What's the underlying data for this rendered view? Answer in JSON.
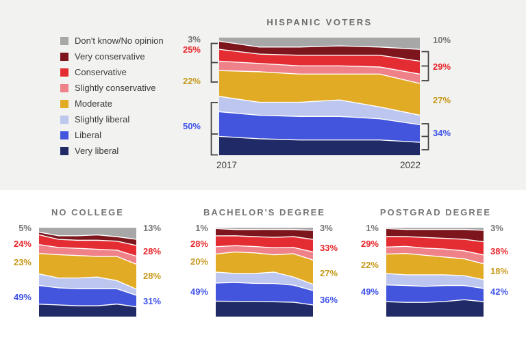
{
  "panel_colors": {
    "top_background": "#f2f2f0",
    "bottom_background": "#ffffff"
  },
  "colors": {
    "dont_know": "#a7a7a7",
    "very_conservative": "#7d161c",
    "conservative": "#e42d33",
    "slightly_conservative": "#ef8189",
    "moderate": "#e2ab26",
    "slightly_liberal": "#bcc6ee",
    "liberal": "#4355dc",
    "very_liberal": "#202a66",
    "label_gray": "#757575",
    "label_red": "#e8272c",
    "label_gold": "#c6991c",
    "label_blue": "#3f53e8",
    "bracket": "#3f3f3f"
  },
  "legend": {
    "items": [
      {
        "label": "Don't know/No opinion",
        "color_key": "dont_know"
      },
      {
        "label": "Very conservative",
        "color_key": "very_conservative"
      },
      {
        "label": "Conservative",
        "color_key": "conservative"
      },
      {
        "label": "Slightly conservative",
        "color_key": "slightly_conservative"
      },
      {
        "label": "Moderate",
        "color_key": "moderate"
      },
      {
        "label": "Slightly liberal",
        "color_key": "slightly_liberal"
      },
      {
        "label": "Liberal",
        "color_key": "liberal"
      },
      {
        "label": "Very liberal",
        "color_key": "very_liberal"
      }
    ]
  },
  "charts": {
    "hispanic": {
      "title": "HISPANIC VOTERS",
      "x_start": "2017",
      "x_end": "2022",
      "left": [
        "3%",
        "25%",
        "22%",
        "50%"
      ],
      "right": [
        "10%",
        "29%",
        "27%",
        "34%"
      ]
    },
    "no_college": {
      "title": "NO COLLEGE",
      "left": [
        "5%",
        "24%",
        "23%",
        "49%"
      ],
      "right": [
        "13%",
        "28%",
        "28%",
        "31%"
      ]
    },
    "bachelors": {
      "title": "BACHELOR'S DEGREE",
      "left": [
        "1%",
        "28%",
        "20%",
        "49%"
      ],
      "right": [
        "3%",
        "33%",
        "27%",
        "36%"
      ]
    },
    "postgrad": {
      "title": "POSTGRAD DEGREE",
      "left": [
        "1%",
        "29%",
        "22%",
        "49%"
      ],
      "right": [
        "3%",
        "38%",
        "18%",
        "42%"
      ]
    }
  },
  "chart_data": [
    {
      "id": "hispanic",
      "type": "area",
      "stacked": true,
      "title": "HISPANIC VOTERS",
      "x": [
        2017,
        2018,
        2019,
        2020,
        2021,
        2022
      ],
      "xlabels_shown": [
        "2017",
        "2022"
      ],
      "ylim": [
        0,
        100
      ],
      "grid": false,
      "legend_position": "left",
      "group_totals": {
        "2017": {
          "dont_know": 3,
          "conservative_total": 25,
          "moderate": 22,
          "liberal_total": 50
        },
        "2022": {
          "dont_know": 10,
          "conservative_total": 29,
          "moderate": 27,
          "liberal_total": 34
        }
      },
      "series": [
        {
          "name": "Don't know/No opinion",
          "color_key": "dont_know",
          "values": [
            3,
            8,
            8,
            7,
            8,
            10
          ]
        },
        {
          "name": "Very conservative",
          "color_key": "very_conservative",
          "values": [
            7,
            6,
            7,
            8,
            7,
            10
          ]
        },
        {
          "name": "Conservative",
          "color_key": "conservative",
          "values": [
            10,
            8,
            9,
            9,
            10,
            11
          ]
        },
        {
          "name": "Slightly conservative",
          "color_key": "slightly_conservative",
          "values": [
            8,
            7,
            7,
            7,
            6,
            8
          ]
        },
        {
          "name": "Moderate",
          "color_key": "moderate",
          "values": [
            22,
            26,
            24,
            22,
            28,
            27
          ]
        },
        {
          "name": "Slightly liberal",
          "color_key": "slightly_liberal",
          "values": [
            13,
            11,
            12,
            14,
            10,
            8
          ]
        },
        {
          "name": "Liberal",
          "color_key": "liberal",
          "values": [
            21,
            20,
            20,
            20,
            18,
            15
          ]
        },
        {
          "name": "Very liberal",
          "color_key": "very_liberal",
          "values": [
            16,
            14,
            13,
            13,
            13,
            11
          ]
        }
      ]
    },
    {
      "id": "no_college",
      "type": "area",
      "stacked": true,
      "title": "NO COLLEGE",
      "x": [
        2017,
        2018,
        2019,
        2020,
        2021,
        2022
      ],
      "ylim": [
        0,
        100
      ],
      "grid": false,
      "group_totals": {
        "2017": {
          "dont_know": 5,
          "conservative_total": 24,
          "moderate": 23,
          "liberal_total": 49
        },
        "2022": {
          "dont_know": 13,
          "conservative_total": 28,
          "moderate": 28,
          "liberal_total": 31
        }
      },
      "series": [
        {
          "name": "Don't know/No opinion",
          "color_key": "dont_know",
          "values": [
            5,
            9,
            9,
            8,
            10,
            13
          ]
        },
        {
          "name": "Very conservative",
          "color_key": "very_conservative",
          "values": [
            3,
            4,
            5,
            6,
            5,
            7
          ]
        },
        {
          "name": "Conservative",
          "color_key": "conservative",
          "values": [
            11,
            9,
            9,
            10,
            10,
            12
          ]
        },
        {
          "name": "Slightly conservative",
          "color_key": "slightly_conservative",
          "values": [
            10,
            8,
            8,
            8,
            7,
            9
          ]
        },
        {
          "name": "Moderate",
          "color_key": "moderate",
          "values": [
            23,
            26,
            25,
            23,
            27,
            28
          ]
        },
        {
          "name": "Slightly liberal",
          "color_key": "slightly_liberal",
          "values": [
            13,
            11,
            12,
            13,
            9,
            7
          ]
        },
        {
          "name": "Liberal",
          "color_key": "liberal",
          "values": [
            21,
            19,
            19,
            19,
            17,
            13
          ]
        },
        {
          "name": "Very liberal",
          "color_key": "very_liberal",
          "values": [
            14,
            13,
            12,
            12,
            14,
            11
          ]
        }
      ]
    },
    {
      "id": "bachelors",
      "type": "area",
      "stacked": true,
      "title": "BACHELOR'S DEGREE",
      "x": [
        2017,
        2018,
        2019,
        2020,
        2021,
        2022
      ],
      "ylim": [
        0,
        100
      ],
      "grid": false,
      "group_totals": {
        "2017": {
          "dont_know": 1,
          "conservative_total": 28,
          "moderate": 20,
          "liberal_total": 49
        },
        "2022": {
          "dont_know": 3,
          "conservative_total": 33,
          "moderate": 27,
          "liberal_total": 36
        }
      },
      "series": [
        {
          "name": "Don't know/No opinion",
          "color_key": "dont_know",
          "values": [
            1,
            2,
            2,
            2,
            2,
            3
          ]
        },
        {
          "name": "Very conservative",
          "color_key": "very_conservative",
          "values": [
            8,
            7,
            8,
            9,
            8,
            10
          ]
        },
        {
          "name": "Conservative",
          "color_key": "conservative",
          "values": [
            12,
            11,
            11,
            12,
            12,
            14
          ]
        },
        {
          "name": "Slightly conservative",
          "color_key": "slightly_conservative",
          "values": [
            8,
            7,
            7,
            8,
            7,
            9
          ]
        },
        {
          "name": "Moderate",
          "color_key": "moderate",
          "values": [
            20,
            24,
            23,
            20,
            26,
            27
          ]
        },
        {
          "name": "Slightly liberal",
          "color_key": "slightly_liberal",
          "values": [
            12,
            10,
            11,
            13,
            9,
            7
          ]
        },
        {
          "name": "Liberal",
          "color_key": "liberal",
          "values": [
            20,
            21,
            20,
            21,
            19,
            16
          ]
        },
        {
          "name": "Very liberal",
          "color_key": "very_liberal",
          "values": [
            17,
            17,
            17,
            17,
            16,
            13
          ]
        }
      ]
    },
    {
      "id": "postgrad",
      "type": "area",
      "stacked": true,
      "title": "POSTGRAD DEGREE",
      "x": [
        2017,
        2018,
        2019,
        2020,
        2021,
        2022
      ],
      "ylim": [
        0,
        100
      ],
      "grid": false,
      "group_totals": {
        "2017": {
          "dont_know": 1,
          "conservative_total": 29,
          "moderate": 22,
          "liberal_total": 49
        },
        "2022": {
          "dont_know": 3,
          "conservative_total": 38,
          "moderate": 18,
          "liberal_total": 42
        }
      },
      "series": [
        {
          "name": "Don't know/No opinion",
          "color_key": "dont_know",
          "values": [
            1,
            2,
            2,
            2,
            2,
            3
          ]
        },
        {
          "name": "Very conservative",
          "color_key": "very_conservative",
          "values": [
            9,
            8,
            9,
            10,
            11,
            13
          ]
        },
        {
          "name": "Conservative",
          "color_key": "conservative",
          "values": [
            12,
            11,
            12,
            12,
            13,
            15
          ]
        },
        {
          "name": "Slightly conservative",
          "color_key": "slightly_conservative",
          "values": [
            8,
            8,
            8,
            9,
            9,
            10
          ]
        },
        {
          "name": "Moderate",
          "color_key": "moderate",
          "values": [
            22,
            24,
            22,
            20,
            19,
            18
          ]
        },
        {
          "name": "Slightly liberal",
          "color_key": "slightly_liberal",
          "values": [
            13,
            12,
            13,
            12,
            11,
            10
          ]
        },
        {
          "name": "Liberal",
          "color_key": "liberal",
          "values": [
            19,
            19,
            18,
            18,
            16,
            15
          ]
        },
        {
          "name": "Very liberal",
          "color_key": "very_liberal",
          "values": [
            17,
            16,
            16,
            17,
            19,
            17
          ]
        }
      ]
    }
  ]
}
